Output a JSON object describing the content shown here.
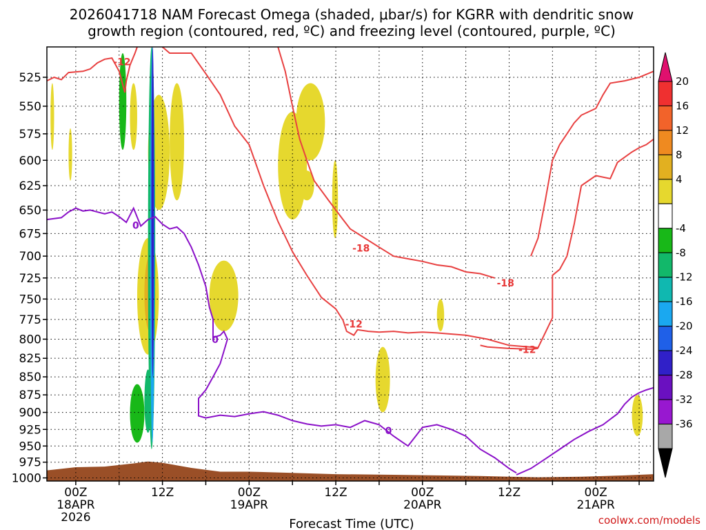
{
  "chart_data": {
    "type": "time-height cross section",
    "title_line1": "2026041718 NAM Forecast Omega (shaded, μbar/s) for KGRR with dendritic snow",
    "title_line2": "growth region (contoured, red, ºC) and freezing level (contoured, purple, ºC)",
    "xlabel": "Forecast Time (UTC)",
    "credit": "coolwx.com/models",
    "x_range_hours": [
      -4,
      80
    ],
    "y_range_hpa": [
      1005,
      500
    ],
    "y_ticks": [
      525,
      550,
      575,
      600,
      625,
      650,
      675,
      700,
      725,
      750,
      775,
      800,
      825,
      850,
      875,
      900,
      925,
      950,
      975,
      1000
    ],
    "x_ticks": [
      {
        "hour": 0,
        "label": "00Z",
        "date": "18APR",
        "year": "2026"
      },
      {
        "hour": 12,
        "label": "12Z",
        "date": "",
        "year": ""
      },
      {
        "hour": 24,
        "label": "00Z",
        "date": "19APR",
        "year": ""
      },
      {
        "hour": 36,
        "label": "12Z",
        "date": "",
        "year": ""
      },
      {
        "hour": 48,
        "label": "00Z",
        "date": "20APR",
        "year": ""
      },
      {
        "hour": 60,
        "label": "12Z",
        "date": "",
        "year": ""
      },
      {
        "hour": 72,
        "label": "00Z",
        "date": "21APR",
        "year": ""
      }
    ],
    "colorbar": {
      "ticks": [
        "20",
        "16",
        "12",
        "8",
        "4",
        "-4",
        "-8",
        "-12",
        "-16",
        "-20",
        "-24",
        "-28",
        "-32",
        "-36"
      ],
      "bins": [
        {
          "color": "#e0106e"
        },
        {
          "color": "#ef3030"
        },
        {
          "color": "#f2632a"
        },
        {
          "color": "#ef8a20"
        },
        {
          "color": "#e2b020"
        },
        {
          "color": "#e6d82e"
        },
        {
          "color": "#ffffff"
        },
        {
          "color": "#18b818"
        },
        {
          "color": "#12b86a"
        },
        {
          "color": "#10b8b0"
        },
        {
          "color": "#1aa8f0"
        },
        {
          "color": "#1f60e8"
        },
        {
          "color": "#3020c8"
        },
        {
          "color": "#6a10c0"
        },
        {
          "color": "#9818d0"
        },
        {
          "color": "#a8a8a8"
        },
        {
          "color": "#000000"
        }
      ]
    },
    "contours": {
      "dendritic_minus12": [
        {
          "label": "-12",
          "points": [
            [
              -4,
              528
            ],
            [
              -3,
              525
            ],
            [
              -2,
              527
            ],
            [
              -1,
              521
            ],
            [
              1,
              520
            ],
            [
              2,
              518
            ],
            [
              3,
              513
            ],
            [
              4,
              510
            ],
            [
              5,
              509
            ],
            [
              6,
              520
            ],
            [
              6.8,
              538
            ],
            [
              7,
              528
            ],
            [
              7.5,
              515
            ],
            [
              8.2,
              505
            ],
            [
              8.5,
              500
            ]
          ]
        },
        {
          "label": "-12",
          "points": [
            [
              12,
              500
            ],
            [
              13,
              505
            ],
            [
              16,
              505
            ],
            [
              18,
              522
            ],
            [
              20,
              540
            ],
            [
              22,
              568
            ],
            [
              24,
              585
            ],
            [
              26,
              625
            ],
            [
              28,
              662
            ],
            [
              30,
              695
            ],
            [
              32,
              722
            ],
            [
              34,
              748
            ],
            [
              36,
              762
            ],
            [
              37,
              776
            ],
            [
              37.5,
              790
            ],
            [
              38.5,
              795
            ],
            [
              39,
              788
            ],
            [
              40.5,
              790
            ],
            [
              42,
              791
            ],
            [
              44,
              790
            ],
            [
              46,
              792
            ],
            [
              48,
              791
            ],
            [
              50,
              792
            ],
            [
              54,
              795
            ],
            [
              57,
              800
            ],
            [
              60,
              808
            ],
            [
              64,
              811
            ],
            [
              66,
              773
            ],
            [
              66,
              722
            ],
            [
              67,
              715
            ],
            [
              68,
              700
            ],
            [
              69,
              665
            ],
            [
              70,
              625
            ],
            [
              72,
              615
            ],
            [
              74,
              618
            ],
            [
              75,
              602
            ],
            [
              77,
              592
            ],
            [
              78,
              588
            ],
            [
              79,
              585
            ],
            [
              80,
              580
            ]
          ]
        },
        {
          "label": "-12",
          "points": [
            [
              56,
              808
            ],
            [
              57,
              810
            ],
            [
              60,
              812
            ],
            [
              63,
              813
            ],
            [
              64,
              812
            ]
          ]
        },
        {
          "label": "-12",
          "points": [
            [
              63,
              700
            ],
            [
              64,
              680
            ],
            [
              65,
              640
            ],
            [
              66,
              600
            ],
            [
              67,
              585
            ],
            [
              68,
              575
            ],
            [
              69,
              565
            ],
            [
              70,
              558
            ],
            [
              71,
              555
            ],
            [
              72,
              552
            ],
            [
              73,
              540
            ],
            [
              74,
              530
            ],
            [
              76,
              528
            ],
            [
              78,
              525
            ],
            [
              80,
              520
            ]
          ]
        }
      ],
      "dendritic_minus18": [
        {
          "label": "-18",
          "points": [
            [
              28,
              500
            ],
            [
              29,
              520
            ],
            [
              30,
              550
            ],
            [
              31,
              580
            ],
            [
              32,
              600
            ],
            [
              33,
              620
            ],
            [
              35,
              640
            ],
            [
              37,
              660
            ],
            [
              38,
              670
            ],
            [
              40,
              680
            ],
            [
              42,
              690
            ],
            [
              44,
              700
            ],
            [
              46,
              703
            ],
            [
              48,
              706
            ],
            [
              50,
              710
            ],
            [
              52,
              712
            ],
            [
              54,
              718
            ],
            [
              56,
              720
            ],
            [
              58,
              725
            ]
          ]
        }
      ],
      "freezing_level": [
        {
          "label": "0",
          "points": [
            [
              -4,
              660
            ],
            [
              -2,
              658
            ],
            [
              -1,
              652
            ],
            [
              0,
              648
            ],
            [
              1,
              651
            ],
            [
              2,
              650
            ],
            [
              3,
              652
            ],
            [
              4,
              654
            ],
            [
              5,
              652
            ],
            [
              6,
              657
            ],
            [
              7,
              663
            ],
            [
              8,
              648
            ],
            [
              9,
              667
            ],
            [
              10,
              660
            ],
            [
              11,
              657
            ],
            [
              12,
              665
            ],
            [
              13,
              670
            ],
            [
              14,
              668
            ],
            [
              15,
              675
            ],
            [
              16,
              690
            ],
            [
              17,
              710
            ],
            [
              18,
              735
            ],
            [
              18.5,
              760
            ],
            [
              19,
              775
            ],
            [
              19,
              798
            ],
            [
              20,
              795
            ],
            [
              20.5,
              790
            ],
            [
              21,
              800
            ],
            [
              20,
              832
            ],
            [
              19,
              850
            ],
            [
              18,
              868
            ],
            [
              17,
              880
            ],
            [
              17,
              905
            ],
            [
              18,
              908
            ],
            [
              20,
              904
            ],
            [
              22,
              906
            ],
            [
              24,
              902
            ],
            [
              26,
              899
            ],
            [
              28,
              904
            ],
            [
              30,
              912
            ],
            [
              32,
              917
            ],
            [
              34,
              920
            ],
            [
              36,
              918
            ],
            [
              38,
              922
            ],
            [
              40,
              912
            ],
            [
              42,
              918
            ],
            [
              44,
              935
            ],
            [
              46,
              950
            ],
            [
              48,
              922
            ],
            [
              50,
              918
            ],
            [
              52,
              925
            ],
            [
              54,
              935
            ],
            [
              56,
              955
            ],
            [
              58,
              968
            ],
            [
              60,
              985
            ],
            [
              61,
              992
            ]
          ]
        },
        {
          "label": "0",
          "points": [
            [
              61,
              995
            ],
            [
              63,
              985
            ],
            [
              65,
              970
            ],
            [
              67,
              955
            ],
            [
              69,
              940
            ],
            [
              71,
              928
            ],
            [
              73,
              918
            ],
            [
              74,
              910
            ],
            [
              75,
              902
            ],
            [
              76,
              888
            ],
            [
              77,
              878
            ],
            [
              78,
              872
            ],
            [
              79,
              868
            ],
            [
              80,
              865
            ]
          ]
        }
      ]
    },
    "shading": [
      {
        "value_bin": "4",
        "t0": 8.5,
        "t1": 11.5,
        "p_top": 680,
        "p_bot": 820
      },
      {
        "value_bin": "8",
        "t0": 9.5,
        "t1": 11,
        "p_top": 700,
        "p_bot": 790
      },
      {
        "value_bin": "12",
        "t0": 10,
        "t1": 11,
        "p_top": 730,
        "p_bot": 760
      },
      {
        "value_bin": "4",
        "t0": 10,
        "t1": 13,
        "p_top": 540,
        "p_bot": 650
      },
      {
        "value_bin": "4",
        "t0": 13,
        "t1": 15,
        "p_top": 530,
        "p_bot": 640
      },
      {
        "value_bin": "4",
        "t0": 18.5,
        "t1": 22.5,
        "p_top": 705,
        "p_bot": 790
      },
      {
        "value_bin": "4",
        "t0": 28,
        "t1": 32,
        "p_top": 555,
        "p_bot": 660
      },
      {
        "value_bin": "4",
        "t0": 30.5,
        "t1": 34.5,
        "p_top": 530,
        "p_bot": 600
      },
      {
        "value_bin": "4",
        "t0": 31,
        "t1": 33,
        "p_top": 610,
        "p_bot": 640
      },
      {
        "value_bin": "4",
        "t0": 35.5,
        "t1": 36.3,
        "p_top": 600,
        "p_bot": 680
      },
      {
        "value_bin": "4",
        "t0": 41.5,
        "t1": 43.5,
        "p_top": 810,
        "p_bot": 900
      },
      {
        "value_bin": "4",
        "t0": 50,
        "t1": 51,
        "p_top": 750,
        "p_bot": 790
      },
      {
        "value_bin": "4",
        "t0": 77,
        "t1": 78.5,
        "p_top": 875,
        "p_bot": 935
      },
      {
        "value_bin": "4",
        "t0": -3.5,
        "t1": -3,
        "p_top": 530,
        "p_bot": 590
      },
      {
        "value_bin": "4",
        "t0": -1,
        "t1": -0.5,
        "p_top": 570,
        "p_bot": 620
      },
      {
        "value_bin": "4",
        "t0": 7.5,
        "t1": 8.5,
        "p_top": 530,
        "p_bot": 590
      },
      {
        "value_bin": "-4",
        "t0": 6,
        "t1": 7,
        "p_top": 505,
        "p_bot": 590
      },
      {
        "value_bin": "-4",
        "t0": 7.5,
        "t1": 9.5,
        "p_top": 860,
        "p_bot": 945
      },
      {
        "value_bin": "-8",
        "t0": 9.5,
        "t1": 10.5,
        "p_top": 840,
        "p_bot": 930
      },
      {
        "value_bin": "-8",
        "t0": 10,
        "t1": 11,
        "p_top": 500,
        "p_bot": 955
      },
      {
        "value_bin": "-16",
        "t0": 10.3,
        "t1": 10.9,
        "p_top": 500,
        "p_bot": 945
      },
      {
        "value_bin": "-24",
        "t0": 10.5,
        "t1": 10.8,
        "p_top": 500,
        "p_bot": 850
      }
    ],
    "terrain": [
      [
        -4,
        988
      ],
      [
        0,
        983
      ],
      [
        4,
        982
      ],
      [
        8,
        977
      ],
      [
        10,
        974
      ],
      [
        12,
        976
      ],
      [
        16,
        984
      ],
      [
        20,
        990
      ],
      [
        24,
        990
      ],
      [
        30,
        992
      ],
      [
        36,
        994
      ],
      [
        44,
        995
      ],
      [
        50,
        996
      ],
      [
        56,
        997
      ],
      [
        60,
        998
      ],
      [
        64,
        999
      ],
      [
        70,
        998
      ],
      [
        76,
        996
      ],
      [
        80,
        994
      ]
    ]
  }
}
